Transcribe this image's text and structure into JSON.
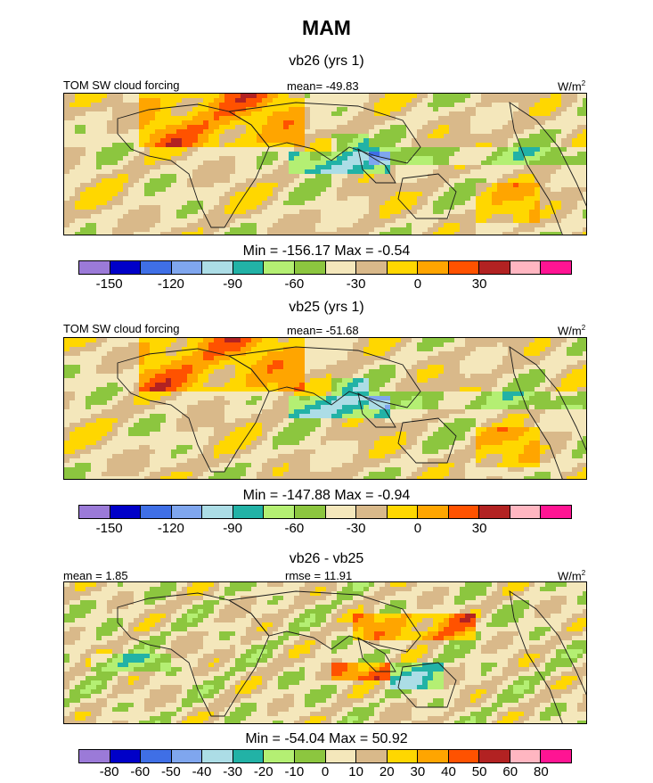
{
  "title": "MAM",
  "units": "W/m²",
  "palette": {
    "abs": [
      "#9b7ad8",
      "#0000c8",
      "#3f6fe6",
      "#7fa6ee",
      "#acdde6",
      "#22b2a6",
      "#b4ef73",
      "#8cc63f",
      "#f4e7bb",
      "#d9b98a",
      "#ffd700",
      "#ffa500",
      "#ff5200",
      "#b22222",
      "#ffb6c1",
      "#ff1493"
    ],
    "diff": [
      "#9b7ad8",
      "#0000c8",
      "#3f6fe6",
      "#7fa6ee",
      "#acdde6",
      "#22b2a6",
      "#b4ef73",
      "#8cc63f",
      "#f4e7bb",
      "#d9b98a",
      "#ffd700",
      "#ffa500",
      "#ff5200",
      "#b22222",
      "#ffb6c1",
      "#ff1493"
    ]
  },
  "chart_data": [
    {
      "type": "heatmap",
      "panel_title": "vb26 (yrs 1)",
      "left_label": "TOM SW cloud forcing",
      "center_label": "mean= -49.83",
      "right_label": "W/m",
      "right_label_sup": "2",
      "min_max": "Min = -156.17 Max =  -0.54",
      "colorbar_ticks": [
        "-150",
        "-120",
        "-90",
        "-60",
        "-30",
        "0",
        "30"
      ],
      "colorbar_tick_boundaries": [
        1,
        3,
        5,
        7,
        9,
        11,
        13
      ]
    },
    {
      "type": "heatmap",
      "panel_title": "vb25 (yrs 1)",
      "left_label": "TOM SW cloud forcing",
      "center_label": "mean= -51.68",
      "right_label": "W/m",
      "right_label_sup": "2",
      "min_max": "Min = -147.88 Max =  -0.94",
      "colorbar_ticks": [
        "-150",
        "-120",
        "-90",
        "-60",
        "-30",
        "0",
        "30"
      ],
      "colorbar_tick_boundaries": [
        1,
        3,
        5,
        7,
        9,
        11,
        13
      ]
    },
    {
      "type": "heatmap",
      "panel_title": "vb26 - vb25",
      "left_label": "mean =   1.85",
      "center_label": "rmse =  11.91",
      "right_label": "W/m",
      "right_label_sup": "2",
      "min_max": "Min = -54.04 Max =  50.92",
      "colorbar_ticks": [
        "-80",
        "-60",
        "-50",
        "-40",
        "-30",
        "-20",
        "-10",
        "0",
        "10",
        "20",
        "30",
        "40",
        "50",
        "60",
        "80"
      ],
      "colorbar_tick_boundaries": [
        1,
        2,
        3,
        4,
        5,
        6,
        7,
        8,
        9,
        10,
        11,
        12,
        13,
        14,
        15
      ]
    }
  ]
}
